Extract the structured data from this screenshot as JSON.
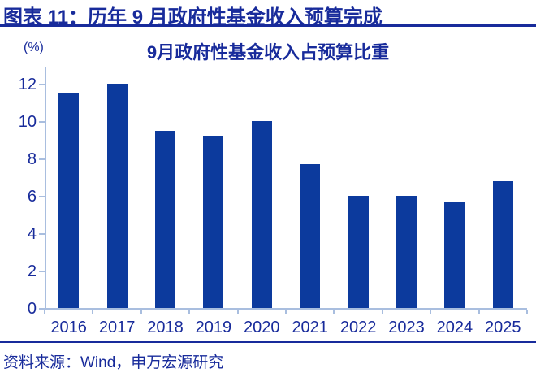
{
  "header": {
    "title": "图表 11：历年 9 月政府性基金收入预算完成"
  },
  "footer": {
    "source": "资料来源：Wind，申万宏源研究"
  },
  "colors": {
    "navy_text": "#182B9B",
    "bar_fill": "#0C3A9D",
    "axis_line": "#A9BEDF"
  },
  "chart_data": {
    "type": "bar",
    "title": "9月政府性基金收入占预算比重",
    "unit_label": "(%)",
    "xlabel": "",
    "ylabel": "",
    "categories": [
      "2016",
      "2017",
      "2018",
      "2019",
      "2020",
      "2021",
      "2022",
      "2023",
      "2024",
      "2025"
    ],
    "values": [
      11.5,
      12.0,
      9.5,
      9.2,
      10.0,
      7.7,
      6.0,
      6.0,
      5.7,
      6.8
    ],
    "ylim": [
      0,
      12
    ],
    "yticks": [
      0,
      2,
      4,
      6,
      8,
      10,
      12
    ],
    "grid": false,
    "legend": "none",
    "bar_color": "#0C3A9D"
  }
}
